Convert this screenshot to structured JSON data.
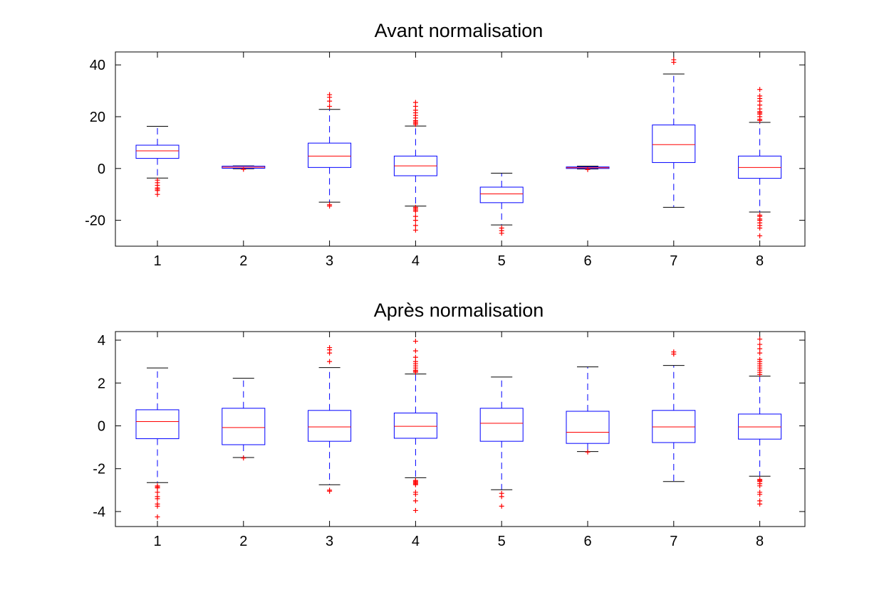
{
  "chart_data": [
    {
      "type": "box",
      "title": "Avant normalisation",
      "categories": [
        "1",
        "2",
        "3",
        "4",
        "5",
        "6",
        "7",
        "8"
      ],
      "ylim": [
        -30,
        45
      ],
      "yticks": [
        -20,
        0,
        20,
        40
      ],
      "colors": {
        "box": "#0000ff",
        "median": "#ff0000",
        "outlier": "#ff0000",
        "cap": "#000000"
      },
      "boxes": [
        {
          "median": 6.8,
          "q1": 3.9,
          "q3": 9.0,
          "whisker_low": -3.7,
          "whisker_high": 16.3,
          "outliers": [
            -4.5,
            -5.5,
            -6.5,
            -7.5,
            -8.0,
            -8.5,
            -10.0
          ]
        },
        {
          "median": 0.5,
          "q1": 0.1,
          "q3": 0.9,
          "whisker_low": -0.1,
          "whisker_high": 1.0,
          "outliers": [
            -0.3
          ]
        },
        {
          "median": 4.8,
          "q1": 0.4,
          "q3": 9.8,
          "whisker_low": -13.0,
          "whisker_high": 22.8,
          "outliers": [
            -14.0,
            -14.5,
            24.0,
            26.0,
            27.5,
            28.5
          ]
        },
        {
          "median": 1.0,
          "q1": -2.8,
          "q3": 4.8,
          "whisker_low": -14.5,
          "whisker_high": 16.4,
          "outliers": [
            -15.0,
            -15.5,
            -16.0,
            -16.5,
            -18.5,
            -20.0,
            -22.0,
            -23.8,
            17.0,
            17.5,
            18.0,
            18.5,
            19.5,
            20.5,
            21.5,
            22.5,
            24.0,
            25.5
          ]
        },
        {
          "median": -9.8,
          "q1": -13.2,
          "q3": -7.2,
          "whisker_low": -21.8,
          "whisker_high": -1.8,
          "outliers": [
            -23.0,
            -24.0,
            -25.0
          ]
        },
        {
          "median": 0.3,
          "q1": 0.0,
          "q3": 0.6,
          "whisker_low": -0.2,
          "whisker_high": 0.9,
          "outliers": [
            -0.4
          ]
        },
        {
          "median": 9.2,
          "q1": 2.3,
          "q3": 16.8,
          "whisker_low": -15.0,
          "whisker_high": 36.5,
          "outliers": [
            41.0,
            42.0
          ]
        },
        {
          "median": 0.4,
          "q1": -3.8,
          "q3": 4.8,
          "whisker_low": -16.8,
          "whisker_high": 17.8,
          "outliers": [
            -18.0,
            -18.5,
            -19.5,
            -20.0,
            -21.0,
            -22.0,
            -23.0,
            -26.0,
            18.5,
            19.0,
            20.0,
            21.0,
            21.5,
            22.0,
            23.0,
            24.5,
            26.0,
            27.0,
            28.0,
            30.5
          ]
        }
      ]
    },
    {
      "type": "box",
      "title": "Après normalisation",
      "categories": [
        "1",
        "2",
        "3",
        "4",
        "5",
        "6",
        "7",
        "8"
      ],
      "ylim": [
        -4.7,
        4.4
      ],
      "yticks": [
        -4,
        -2,
        0,
        2,
        4
      ],
      "colors": {
        "box": "#0000ff",
        "median": "#ff0000",
        "outlier": "#ff0000",
        "cap": "#000000"
      },
      "boxes": [
        {
          "median": 0.2,
          "q1": -0.6,
          "q3": 0.75,
          "whisker_low": -2.65,
          "whisker_high": 2.7,
          "outliers": [
            -2.8,
            -2.85,
            -2.9,
            -3.1,
            -3.3,
            -3.4,
            -3.65,
            -3.75,
            -4.25
          ]
        },
        {
          "median": -0.08,
          "q1": -0.88,
          "q3": 0.82,
          "whisker_low": -1.48,
          "whisker_high": 2.22,
          "outliers": [
            -1.5
          ]
        },
        {
          "median": -0.05,
          "q1": -0.72,
          "q3": 0.72,
          "whisker_low": -2.75,
          "whisker_high": 2.72,
          "outliers": [
            -3.0,
            -3.05,
            3.0,
            3.4,
            3.55,
            3.65
          ]
        },
        {
          "median": -0.02,
          "q1": -0.58,
          "q3": 0.6,
          "whisker_low": -2.42,
          "whisker_high": 2.42,
          "outliers": [
            -2.55,
            -2.6,
            -2.65,
            -2.7,
            -2.75,
            -3.1,
            -3.2,
            -3.5,
            -3.95,
            2.5,
            2.55,
            2.6,
            2.7,
            2.8,
            2.9,
            3.0,
            3.2,
            3.5,
            3.95
          ]
        },
        {
          "median": 0.12,
          "q1": -0.72,
          "q3": 0.82,
          "whisker_low": -2.98,
          "whisker_high": 2.28,
          "outliers": [
            -3.15,
            -3.3,
            -3.75
          ]
        },
        {
          "median": -0.3,
          "q1": -0.82,
          "q3": 0.68,
          "whisker_low": -1.2,
          "whisker_high": 2.75,
          "outliers": [
            -1.22
          ]
        },
        {
          "median": -0.05,
          "q1": -0.78,
          "q3": 0.72,
          "whisker_low": -2.6,
          "whisker_high": 2.82,
          "outliers": [
            3.35,
            3.45
          ]
        },
        {
          "median": -0.05,
          "q1": -0.62,
          "q3": 0.55,
          "whisker_low": -2.35,
          "whisker_high": 2.32,
          "outliers": [
            -2.5,
            -2.55,
            -2.6,
            -2.7,
            -2.8,
            -3.1,
            -3.2,
            -3.5,
            -3.65,
            2.4,
            2.5,
            2.6,
            2.7,
            2.8,
            2.9,
            3.0,
            3.1,
            3.4,
            3.6,
            3.8,
            4.05
          ]
        }
      ]
    }
  ]
}
